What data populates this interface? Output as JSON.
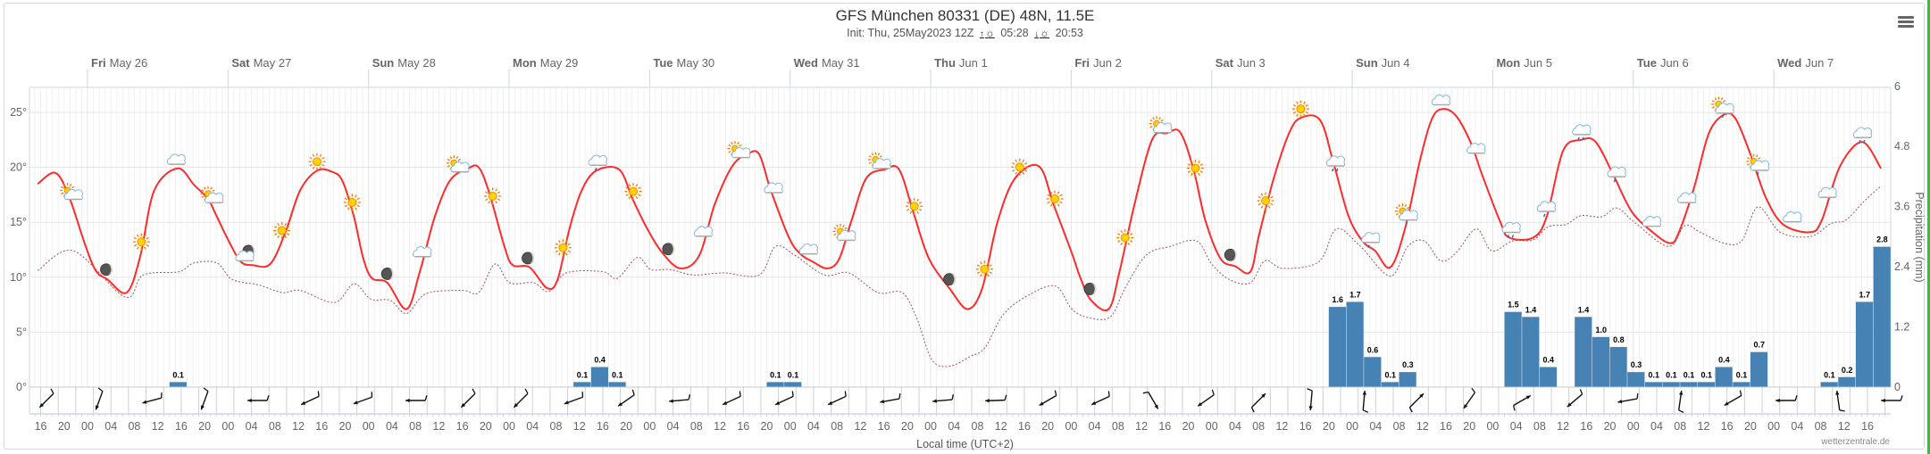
{
  "header": {
    "title": "GFS München 80331 (DE) 48N, 11.5E",
    "init": "Init: Thu, 25May2023 12Z",
    "sunrise": "05:28",
    "sunset": "20:53",
    "sunrise_icon": "sunrise-icon",
    "sunset_icon": "sunset-icon",
    "menu_icon": "hamburger-menu-icon"
  },
  "x_axis_title": "Local time (UTC+2)",
  "credit": "wetterzentrale.de",
  "chart_data": {
    "type": "line",
    "time_unit": "hours since Fri May 26 00:00 local",
    "colors": {
      "temperature": "#ff2a2a",
      "dewpoint": "#a0525a",
      "precipitation": "#4682b4"
    },
    "days": [
      {
        "dow": "Fri",
        "date": "May 26"
      },
      {
        "dow": "Sat",
        "date": "May 27"
      },
      {
        "dow": "Sun",
        "date": "May 28"
      },
      {
        "dow": "Mon",
        "date": "May 29"
      },
      {
        "dow": "Tue",
        "date": "May 30"
      },
      {
        "dow": "Wed",
        "date": "May 31"
      },
      {
        "dow": "Thu",
        "date": "Jun 1"
      },
      {
        "dow": "Fri",
        "date": "Jun 2"
      },
      {
        "dow": "Sat",
        "date": "Jun 3"
      },
      {
        "dow": "Sun",
        "date": "Jun 4"
      },
      {
        "dow": "Mon",
        "date": "Jun 5"
      },
      {
        "dow": "Tue",
        "date": "Jun 6"
      },
      {
        "dow": "Wed",
        "date": "Jun 7"
      }
    ],
    "x_ticks": {
      "start_hour": -8,
      "step_hours": 4,
      "labels": [
        "16",
        "20",
        "00",
        "04",
        "08",
        "12",
        "16",
        "20",
        "00",
        "04",
        "08",
        "12",
        "16",
        "20",
        "00",
        "04",
        "08",
        "12",
        "16",
        "20",
        "00",
        "04",
        "08",
        "12",
        "16",
        "20",
        "00",
        "04",
        "08",
        "12",
        "16",
        "20",
        "00",
        "04",
        "08",
        "12",
        "16",
        "20",
        "00",
        "04",
        "08",
        "12",
        "16",
        "20",
        "00",
        "04",
        "08",
        "12",
        "16",
        "20",
        "00",
        "04",
        "08",
        "12",
        "16",
        "20",
        "00",
        "04",
        "08",
        "12",
        "16",
        "20",
        "00",
        "04",
        "08",
        "12",
        "16",
        "20",
        "00",
        "04",
        "08",
        "12",
        "16",
        "20",
        "00",
        "04",
        "08",
        "12",
        "16"
      ]
    },
    "y_left": {
      "ylim": [
        0,
        27.3
      ],
      "ticks": [
        0,
        5,
        10,
        15,
        20,
        25
      ],
      "labels": [
        "0°",
        "5°",
        "10°",
        "15°",
        "20°",
        "25°"
      ]
    },
    "y_right": {
      "label": "Precipitation (mm)",
      "ylim": [
        0,
        6
      ],
      "ticks": [
        0,
        1.2,
        2.4,
        3.6,
        4.8,
        6
      ],
      "labels": [
        "0",
        "1.2",
        "2.4",
        "3.6",
        "4.8",
        "6"
      ]
    },
    "temperature": [
      [
        -8.5,
        18.5
      ],
      [
        -5.5,
        19.5
      ],
      [
        -3.2,
        17.4
      ],
      [
        -0.5,
        13.1
      ],
      [
        1.4,
        10.6
      ],
      [
        3.4,
        9.8
      ],
      [
        6.7,
        8.6
      ],
      [
        9.0,
        11.9
      ],
      [
        11.4,
        17.9
      ],
      [
        15.4,
        19.9
      ],
      [
        18.2,
        18.4
      ],
      [
        20.6,
        17.1
      ],
      [
        22.1,
        15.5
      ],
      [
        24.3,
        13.1
      ],
      [
        26.2,
        11.4
      ],
      [
        28.2,
        11.1
      ],
      [
        31.2,
        11.2
      ],
      [
        33.8,
        14.1
      ],
      [
        36.3,
        17.9
      ],
      [
        39.2,
        19.7
      ],
      [
        41.7,
        19.6
      ],
      [
        43.5,
        18.8
      ],
      [
        45.5,
        15.5
      ],
      [
        47.1,
        11.7
      ],
      [
        48.6,
        9.9
      ],
      [
        51.2,
        9.5
      ],
      [
        54.5,
        7.1
      ],
      [
        56.8,
        10.6
      ],
      [
        59.3,
        15.5
      ],
      [
        61.9,
        18.8
      ],
      [
        65.0,
        19.9
      ],
      [
        66.8,
        20.0
      ],
      [
        68.6,
        17.7
      ],
      [
        71.2,
        12.8
      ],
      [
        72.6,
        11.1
      ],
      [
        75.5,
        10.9
      ],
      [
        78.5,
        9.0
      ],
      [
        80.3,
        9.8
      ],
      [
        82.3,
        14.4
      ],
      [
        84.4,
        17.9
      ],
      [
        86.9,
        19.7
      ],
      [
        90.8,
        19.8
      ],
      [
        93.1,
        17.1
      ],
      [
        95.6,
        14.4
      ],
      [
        98.2,
        12.2
      ],
      [
        101.3,
        10.8
      ],
      [
        104.5,
        12.0
      ],
      [
        107.1,
        16.6
      ],
      [
        110.1,
        20.1
      ],
      [
        112.7,
        21.2
      ],
      [
        114.7,
        21.2
      ],
      [
        116.7,
        17.9
      ],
      [
        119.8,
        13.6
      ],
      [
        121.8,
        12.1
      ],
      [
        123.9,
        11.4
      ],
      [
        126.4,
        10.8
      ],
      [
        128.4,
        11.7
      ],
      [
        130.5,
        15.2
      ],
      [
        133.0,
        19.0
      ],
      [
        136.1,
        19.8
      ],
      [
        138.6,
        19.8
      ],
      [
        141.1,
        15.8
      ],
      [
        143.7,
        11.7
      ],
      [
        147.2,
        9.0
      ],
      [
        150.3,
        7.1
      ],
      [
        152.8,
        9.0
      ],
      [
        155.4,
        15.0
      ],
      [
        158.4,
        19.0
      ],
      [
        162.5,
        20.1
      ],
      [
        165.0,
        16.6
      ],
      [
        168.1,
        12.2
      ],
      [
        169.6,
        9.9
      ],
      [
        171.4,
        7.9
      ],
      [
        174.4,
        7.1
      ],
      [
        176.2,
        10.4
      ],
      [
        178.8,
        16.6
      ],
      [
        181.8,
        22.5
      ],
      [
        184.3,
        23.1
      ],
      [
        186.6,
        23.2
      ],
      [
        188.9,
        19.8
      ],
      [
        190.9,
        15.2
      ],
      [
        193.5,
        11.7
      ],
      [
        196.0,
        11.0
      ],
      [
        198.6,
        10.5
      ],
      [
        200.1,
        13.9
      ],
      [
        202.6,
        19.0
      ],
      [
        205.2,
        23.1
      ],
      [
        207.2,
        24.5
      ],
      [
        210.5,
        24.3
      ],
      [
        212.8,
        20.4
      ],
      [
        215.4,
        15.5
      ],
      [
        217.9,
        13.2
      ],
      [
        219.9,
        12.4
      ],
      [
        222.5,
        10.9
      ],
      [
        225.0,
        14.4
      ],
      [
        227.6,
        20.7
      ],
      [
        229.6,
        24.4
      ],
      [
        231.4,
        25.3
      ],
      [
        233.7,
        24.7
      ],
      [
        236.2,
        22.3
      ],
      [
        238.2,
        19.3
      ],
      [
        241.3,
        15.0
      ],
      [
        242.8,
        13.6
      ],
      [
        246.9,
        13.6
      ],
      [
        249.2,
        15.5
      ],
      [
        252.0,
        21.5
      ],
      [
        255.1,
        22.5
      ],
      [
        257.6,
        22.3
      ],
      [
        260.6,
        19.3
      ],
      [
        263.7,
        16.0
      ],
      [
        267.3,
        14.1
      ],
      [
        270.3,
        13.1
      ],
      [
        271.8,
        14.1
      ],
      [
        274.4,
        18.2
      ],
      [
        276.9,
        23.1
      ],
      [
        279.5,
        24.8
      ],
      [
        281.5,
        24.4
      ],
      [
        284.0,
        21.2
      ],
      [
        286.6,
        17.3
      ],
      [
        289.6,
        14.8
      ],
      [
        294.2,
        14.1
      ],
      [
        296.2,
        15.2
      ],
      [
        299.3,
        20.1
      ],
      [
        303.1,
        22.3
      ],
      [
        306.3,
        19.9
      ]
    ],
    "dewpoint": [
      [
        -8.5,
        10.6
      ],
      [
        -2.4,
        12.4
      ],
      [
        6.4,
        8.2
      ],
      [
        9.5,
        10.2
      ],
      [
        15.6,
        10.5
      ],
      [
        18.2,
        11.3
      ],
      [
        22.1,
        11.3
      ],
      [
        24.7,
        9.8
      ],
      [
        29.2,
        9.3
      ],
      [
        33.3,
        8.6
      ],
      [
        36.3,
        8.8
      ],
      [
        42.2,
        7.7
      ],
      [
        45.5,
        9.4
      ],
      [
        48.4,
        8.0
      ],
      [
        51.7,
        7.9
      ],
      [
        54.5,
        6.7
      ],
      [
        57.8,
        8.5
      ],
      [
        64,
        8.8
      ],
      [
        66.8,
        8.6
      ],
      [
        69.6,
        11.2
      ],
      [
        72.1,
        9.5
      ],
      [
        76.2,
        9.5
      ],
      [
        78.8,
        8.7
      ],
      [
        81.8,
        10.4
      ],
      [
        88,
        10.5
      ],
      [
        90.5,
        9.9
      ],
      [
        93.9,
        11.8
      ],
      [
        96.2,
        10.7
      ],
      [
        99.5,
        10.7
      ],
      [
        103.5,
        10.2
      ],
      [
        108.6,
        10.4
      ],
      [
        114.7,
        10.2
      ],
      [
        117.5,
        12.8
      ],
      [
        120.8,
        12.0
      ],
      [
        125.9,
        10.2
      ],
      [
        130,
        10.4
      ],
      [
        135,
        8.6
      ],
      [
        139.1,
        8.6
      ],
      [
        141.6,
        6.3
      ],
      [
        144.2,
        2.5
      ],
      [
        147.2,
        1.9
      ],
      [
        150.8,
        2.8
      ],
      [
        153.3,
        3.6
      ],
      [
        156.4,
        6.6
      ],
      [
        160.5,
        8.3
      ],
      [
        165.3,
        9.2
      ],
      [
        168.1,
        7.1
      ],
      [
        171.1,
        6.3
      ],
      [
        174.7,
        6.4
      ],
      [
        177.2,
        9.0
      ],
      [
        180.8,
        12.0
      ],
      [
        184.9,
        12.8
      ],
      [
        189.4,
        13.3
      ],
      [
        192.0,
        11.2
      ],
      [
        195.0,
        9.8
      ],
      [
        198.6,
        9.5
      ],
      [
        201.1,
        11.5
      ],
      [
        204.2,
        10.8
      ],
      [
        210.3,
        11.4
      ],
      [
        213.3,
        14.4
      ],
      [
        217.4,
        12.8
      ],
      [
        222.5,
        10.1
      ],
      [
        225.5,
        12.8
      ],
      [
        228.3,
        13.3
      ],
      [
        231.1,
        11.5
      ],
      [
        233.7,
        12.2
      ],
      [
        237.2,
        14.4
      ],
      [
        239.8,
        12.4
      ],
      [
        243.4,
        13.3
      ],
      [
        246.9,
        13.4
      ],
      [
        249.5,
        14.6
      ],
      [
        252.5,
        14.8
      ],
      [
        255.1,
        15.6
      ],
      [
        258.6,
        15.5
      ],
      [
        261.2,
        16.3
      ],
      [
        264.2,
        15.0
      ],
      [
        270.0,
        12.8
      ],
      [
        272.8,
        14.7
      ],
      [
        275.4,
        14.1
      ],
      [
        279.5,
        13.1
      ],
      [
        282.5,
        13.3
      ],
      [
        285.3,
        16.4
      ],
      [
        289.1,
        14.1
      ],
      [
        294.2,
        13.7
      ],
      [
        297.8,
        14.9
      ],
      [
        300.3,
        15.2
      ],
      [
        303.4,
        16.9
      ],
      [
        306.1,
        18.2
      ]
    ],
    "precipitation": {
      "bar_hours": 3,
      "bars": [
        [
          14,
          "0.1"
        ],
        [
          83,
          "0.1"
        ],
        [
          86,
          "0.4"
        ],
        [
          89,
          "0.1"
        ],
        [
          116,
          "0.1"
        ],
        [
          119,
          "0.1"
        ],
        [
          212,
          "1.6"
        ],
        [
          215,
          "1.7"
        ],
        [
          218,
          "0.6"
        ],
        [
          221,
          "0.1"
        ],
        [
          224,
          "0.3"
        ],
        [
          242,
          "1.5"
        ],
        [
          245,
          "1.4"
        ],
        [
          248,
          "0.4"
        ],
        [
          254,
          "1.4"
        ],
        [
          257,
          "1.0"
        ],
        [
          260,
          "0.8"
        ],
        [
          263,
          "0.3"
        ],
        [
          266,
          "0.1"
        ],
        [
          269,
          "0.1"
        ],
        [
          272,
          "0.1"
        ],
        [
          275,
          "0.1"
        ],
        [
          278,
          "0.4"
        ],
        [
          281,
          "0.1"
        ],
        [
          284,
          "0.7"
        ],
        [
          296,
          "0.1"
        ],
        [
          299,
          "0.2"
        ],
        [
          302,
          "1.7"
        ],
        [
          305,
          "2.8"
        ]
      ]
    },
    "weather_icons": {
      "start_hour": -2.8,
      "step_hours": 6,
      "types": [
        "sun-cloud",
        "moon",
        "sun",
        "cloud",
        "sun-cloud",
        "moon-cloud",
        "sun",
        "sun",
        "sun",
        "moon",
        "cloud",
        "sun-cloud",
        "sun",
        "moon",
        "sun",
        "light-rain",
        "sun",
        "moon",
        "cloud",
        "sun-cloud",
        "cloud",
        "cloud",
        "sun-cloud",
        "sun-cloud",
        "sun",
        "moon",
        "sun",
        "sun",
        "sun",
        "moon",
        "sun",
        "sun-cloud",
        "sun",
        "moon",
        "sun",
        "sun",
        "rain",
        "light-rain",
        "sun-cloud-rain",
        "cloud",
        "cloud",
        "rain",
        "light-rain",
        "rain",
        "light-rain",
        "cloud",
        "cloud",
        "sun-cloud-rain",
        "sun-cloud-rain",
        "cloud",
        "cloud",
        "rain"
      ]
    },
    "wind": {
      "start_hour": -7,
      "step_hours": 9,
      "direction_to_deg": [
        225,
        200,
        255,
        200,
        270,
        245,
        250,
        270,
        225,
        225,
        250,
        235,
        265,
        245,
        245,
        245,
        260,
        265,
        268,
        240,
        245,
        150,
        235,
        45,
        185,
        5,
        45,
        215,
        60,
        230,
        260,
        8,
        240,
        270,
        352,
        270
      ]
    }
  }
}
